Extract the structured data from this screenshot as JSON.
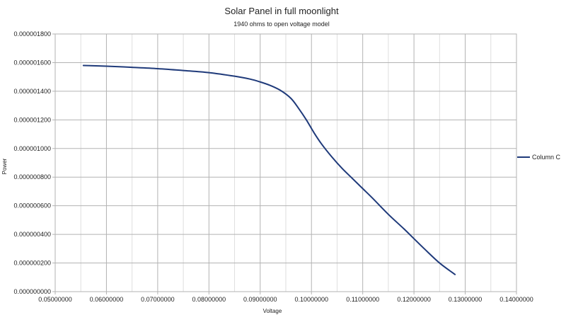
{
  "chart_data": {
    "type": "line",
    "title": "Solar Panel in full moonlight",
    "subtitle": "1940 ohms to open voltage model",
    "xlabel": "Voltage",
    "ylabel": "Power",
    "xlim": [
      0.05,
      0.14
    ],
    "ylim": [
      0,
      1.8e-06
    ],
    "x_ticks": [
      0.05,
      0.06,
      0.07,
      0.08,
      0.09,
      0.1,
      0.11,
      0.12,
      0.13,
      0.14
    ],
    "x_tick_labels": [
      "0.05000000",
      "0.06000000",
      "0.07000000",
      "0.08000000",
      "0.09000000",
      "0.10000000",
      "0.11000000",
      "0.12000000",
      "0.13000000",
      "0.14000000"
    ],
    "y_ticks": [
      0,
      2e-07,
      4e-07,
      6e-07,
      8e-07,
      1e-06,
      1.2e-06,
      1.4e-06,
      1.6e-06,
      1.8e-06
    ],
    "y_tick_labels": [
      "0.000000000",
      "0.000000200",
      "0.000000400",
      "0.000000600",
      "0.000000800",
      "0.000001000",
      "0.000001200",
      "0.000001400",
      "0.000001600",
      "0.000001800"
    ],
    "grid": true,
    "legend": "right",
    "series": [
      {
        "name": "Column C",
        "color": "#1f3a7a",
        "x": [
          0.0555,
          0.06,
          0.065,
          0.07,
          0.075,
          0.08,
          0.085,
          0.088,
          0.09,
          0.092,
          0.094,
          0.096,
          0.0975,
          0.099,
          0.1005,
          0.102,
          0.104,
          0.106,
          0.108,
          0.11,
          0.112,
          0.115,
          0.118,
          0.12,
          0.122,
          0.125,
          0.128
        ],
        "values": [
          1.58e-06,
          1.575e-06,
          1.567e-06,
          1.558e-06,
          1.545e-06,
          1.53e-06,
          1.505e-06,
          1.485e-06,
          1.465e-06,
          1.44e-06,
          1.405e-06,
          1.35e-06,
          1.28e-06,
          1.2e-06,
          1.11e-06,
          1.03e-06,
          9.4e-07,
          8.6e-07,
          7.9e-07,
          7.2e-07,
          6.5e-07,
          5.4e-07,
          4.4e-07,
          3.7e-07,
          3e-07,
          2e-07,
          1.2e-07
        ]
      }
    ]
  }
}
